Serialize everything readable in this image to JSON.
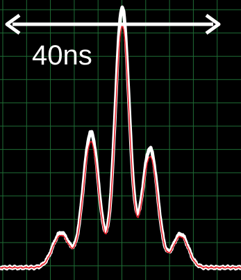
{
  "annotation": {
    "label": "40ns"
  }
}
